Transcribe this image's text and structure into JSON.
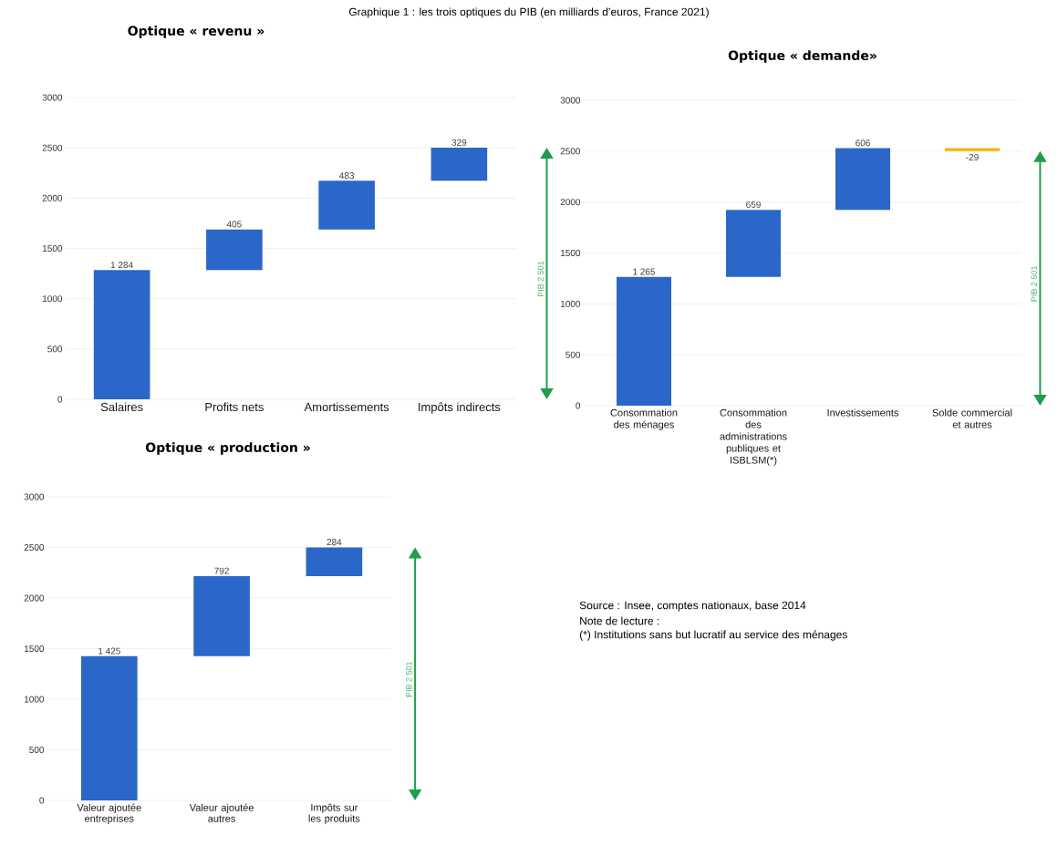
{
  "chart_data": [
    {
      "type": "bar",
      "title": "Optique « revenu »",
      "categories": [
        "Salaires",
        "Profits nets",
        "Amortissements",
        "Impôts indirects"
      ],
      "values": [
        1284,
        405,
        483,
        329
      ],
      "base": [
        0,
        1284,
        1689,
        2172
      ],
      "colors": [
        "#2a67c9",
        "#2a67c9",
        "#2a67c9",
        "#2a67c9"
      ],
      "value_labels": [
        "1 284",
        "405",
        "483",
        "329"
      ],
      "ylim": [
        0,
        3000
      ],
      "yticks": [
        0,
        500,
        1000,
        1500,
        2000,
        2500,
        3000
      ],
      "grid": "y",
      "annotations": [
        "Graphique 1 : les trois optiques du PIB (en milliards d’euros, France 2021)",
        "PIB 2 501"
      ]
    },
    {
      "type": "bar",
      "title": "Optique « demande»",
      "categories": [
        "Consommation des ménages",
        "Consommation des administrations publiques et ISBLSM(*)",
        "Investissements",
        "Solde commercial et autres"
      ],
      "values": [
        1265,
        659,
        606,
        -29
      ],
      "base": [
        0,
        1265,
        1924,
        2530
      ],
      "colors": [
        "#2a67c9",
        "#2a67c9",
        "#2a67c9",
        "#f4b400"
      ],
      "value_labels": [
        "1 265",
        "659",
        "606",
        "-29"
      ],
      "ylim": [
        0,
        3000
      ],
      "yticks": [
        0,
        500,
        1000,
        1500,
        2000,
        2500,
        3000
      ],
      "grid": "y",
      "annotations": [
        "PIB 2 501"
      ]
    },
    {
      "type": "bar",
      "title": "Optique « production »",
      "categories": [
        "Valeur ajoutée entreprises",
        "Valeur ajoutée autres",
        "Impôts sur les produits"
      ],
      "values": [
        1425,
        792,
        284
      ],
      "base": [
        0,
        1425,
        2217
      ],
      "colors": [
        "#2a67c9",
        "#2a67c9",
        "#2a67c9"
      ],
      "value_labels": [
        "1 425",
        "792",
        "284"
      ],
      "ylim": [
        0,
        3000
      ],
      "yticks": [
        0,
        500,
        1000,
        1500,
        2000,
        2500,
        3000
      ],
      "grid": "y",
      "annotations": [
        "PIB 2 501",
        "Source : Insee, comptes nationaux, base 2014",
        "Note de lecture :",
        "(*) Institutions sans but lucratif au service des ménages"
      ]
    }
  ]
}
